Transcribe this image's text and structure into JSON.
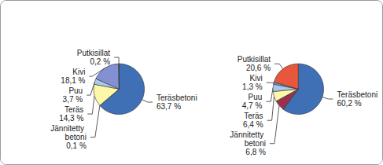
{
  "chart_data": [
    {
      "type": "pie",
      "categories": [
        "Teräsbetoni",
        "Jännitetty betoni",
        "Teräs",
        "Puu",
        "Kivi",
        "Putkisillat"
      ],
      "values": [
        63.7,
        0.1,
        14.3,
        3.7,
        18.1,
        0.2
      ],
      "value_labels": [
        "63,7 %",
        "0,1 %",
        "14,3 %",
        "3,7 %",
        "18,1 %",
        "0,2 %"
      ],
      "colors": [
        "#3f6fb5",
        "#a8c4e6",
        "#fdf7a8",
        "#a9c9ea",
        "#8391d3",
        "#e8563c"
      ],
      "data_labels": true
    },
    {
      "type": "pie",
      "categories": [
        "Teräsbetoni",
        "Jännitetty betoni",
        "Teräs",
        "Puu",
        "Kivi",
        "Putkisillat"
      ],
      "values": [
        60.2,
        6.8,
        6.4,
        4.7,
        1.3,
        20.6
      ],
      "value_labels": [
        "60,2 %",
        "6,8 %",
        "6,4 %",
        "4,7 %",
        "1,3 %",
        "20,6 %"
      ],
      "colors": [
        "#3f6fb5",
        "#9c2f4c",
        "#fdf7a8",
        "#a9c9ea",
        "#8391d3",
        "#e8563c"
      ],
      "data_labels": true
    }
  ]
}
